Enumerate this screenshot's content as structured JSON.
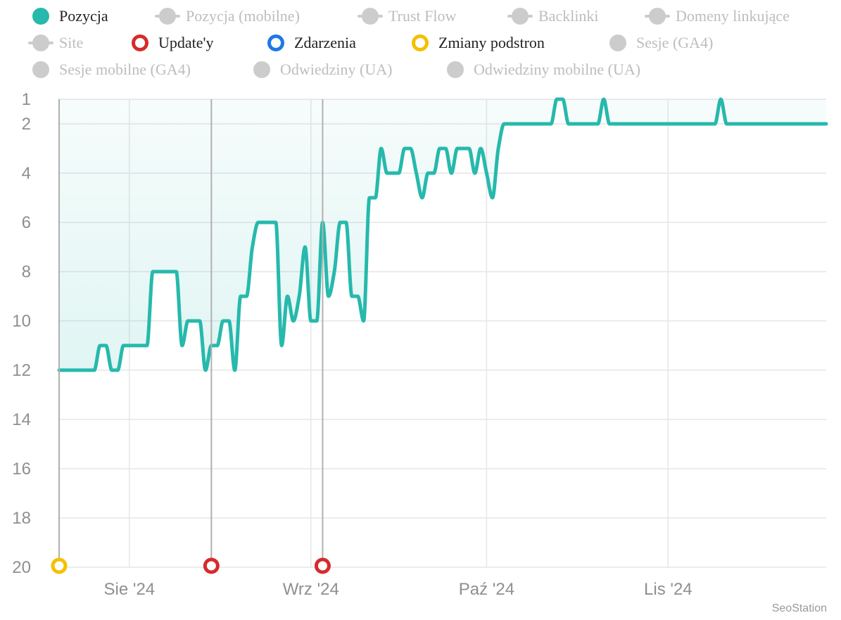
{
  "legend": [
    {
      "label": "Pozycja",
      "active": true,
      "marker": "filled",
      "color": "#26b9ac"
    },
    {
      "label": "Pozycja (mobilne)",
      "active": false,
      "marker": "line-dot",
      "color": "#cccccc"
    },
    {
      "label": "Trust Flow",
      "active": false,
      "marker": "line-dot",
      "color": "#cccccc"
    },
    {
      "label": "Backlinki",
      "active": false,
      "marker": "line-dot",
      "color": "#cccccc"
    },
    {
      "label": "Domeny linkujące",
      "active": false,
      "marker": "line-dot",
      "color": "#cccccc"
    },
    {
      "label": "Site",
      "active": false,
      "marker": "line-dot",
      "color": "#cccccc"
    },
    {
      "label": "Update'y",
      "active": true,
      "marker": "ring",
      "color": "#d62b2b"
    },
    {
      "label": "Zdarzenia",
      "active": true,
      "marker": "ring",
      "color": "#1f78e6"
    },
    {
      "label": "Zmiany podstron",
      "active": true,
      "marker": "ring",
      "color": "#f5c000"
    },
    {
      "label": "Sesje (GA4)",
      "active": false,
      "marker": "filled",
      "color": "#cccccc"
    },
    {
      "label": "Sesje mobilne (GA4)",
      "active": false,
      "marker": "filled",
      "color": "#cccccc"
    },
    {
      "label": "Odwiedziny (UA)",
      "active": false,
      "marker": "filled",
      "color": "#cccccc"
    },
    {
      "label": "Odwiedziny mobilne (UA)",
      "active": false,
      "marker": "filled",
      "color": "#cccccc"
    }
  ],
  "credit": "SeoStation",
  "chart_data": {
    "type": "line",
    "title": "",
    "xlabel": "",
    "ylabel": "",
    "ylim": [
      20,
      1
    ],
    "y_axis_reversed": true,
    "y_ticks": [
      1,
      2,
      4,
      6,
      8,
      10,
      12,
      14,
      16,
      18,
      20
    ],
    "x_range": [
      "2024-07-20",
      "2024-11-28"
    ],
    "x_ticks": [
      {
        "date": "2024-08-01",
        "label": "Sie '24"
      },
      {
        "date": "2024-09-01",
        "label": "Wrz '24"
      },
      {
        "date": "2024-10-01",
        "label": "Paź '24"
      },
      {
        "date": "2024-11-01",
        "label": "Lis '24"
      }
    ],
    "grid": true,
    "area_fill": true,
    "series": [
      {
        "name": "Pozycja",
        "color": "#26b9ac",
        "points": [
          [
            "2024-07-20",
            12
          ],
          [
            "2024-07-26",
            12
          ],
          [
            "2024-07-27",
            11
          ],
          [
            "2024-07-28",
            11
          ],
          [
            "2024-07-29",
            12
          ],
          [
            "2024-07-30",
            12
          ],
          [
            "2024-07-31",
            11
          ],
          [
            "2024-08-04",
            11
          ],
          [
            "2024-08-05",
            8
          ],
          [
            "2024-08-09",
            8
          ],
          [
            "2024-08-10",
            11
          ],
          [
            "2024-08-11",
            10
          ],
          [
            "2024-08-13",
            10
          ],
          [
            "2024-08-14",
            12
          ],
          [
            "2024-08-15",
            11
          ],
          [
            "2024-08-16",
            11
          ],
          [
            "2024-08-17",
            10
          ],
          [
            "2024-08-18",
            10
          ],
          [
            "2024-08-19",
            12
          ],
          [
            "2024-08-20",
            9
          ],
          [
            "2024-08-21",
            9
          ],
          [
            "2024-08-22",
            7
          ],
          [
            "2024-08-23",
            6
          ],
          [
            "2024-08-26",
            6
          ],
          [
            "2024-08-27",
            11
          ],
          [
            "2024-08-28",
            9
          ],
          [
            "2024-08-29",
            10
          ],
          [
            "2024-08-30",
            9
          ],
          [
            "2024-08-31",
            7
          ],
          [
            "2024-09-01",
            10
          ],
          [
            "2024-09-02",
            10
          ],
          [
            "2024-09-03",
            6
          ],
          [
            "2024-09-04",
            9
          ],
          [
            "2024-09-05",
            8
          ],
          [
            "2024-09-06",
            6
          ],
          [
            "2024-09-07",
            6
          ],
          [
            "2024-09-08",
            9
          ],
          [
            "2024-09-09",
            9
          ],
          [
            "2024-09-10",
            10
          ],
          [
            "2024-09-11",
            5
          ],
          [
            "2024-09-12",
            5
          ],
          [
            "2024-09-13",
            3
          ],
          [
            "2024-09-14",
            4
          ],
          [
            "2024-09-16",
            4
          ],
          [
            "2024-09-17",
            3
          ],
          [
            "2024-09-18",
            3
          ],
          [
            "2024-09-19",
            4
          ],
          [
            "2024-09-20",
            5
          ],
          [
            "2024-09-21",
            4
          ],
          [
            "2024-09-22",
            4
          ],
          [
            "2024-09-23",
            3
          ],
          [
            "2024-09-24",
            3
          ],
          [
            "2024-09-25",
            4
          ],
          [
            "2024-09-26",
            3
          ],
          [
            "2024-09-28",
            3
          ],
          [
            "2024-09-29",
            4
          ],
          [
            "2024-09-30",
            3
          ],
          [
            "2024-10-01",
            4
          ],
          [
            "2024-10-02",
            5
          ],
          [
            "2024-10-03",
            3
          ],
          [
            "2024-10-04",
            2
          ],
          [
            "2024-10-12",
            2
          ],
          [
            "2024-10-13",
            1
          ],
          [
            "2024-10-14",
            1
          ],
          [
            "2024-10-15",
            2
          ],
          [
            "2024-10-20",
            2
          ],
          [
            "2024-10-21",
            1
          ],
          [
            "2024-10-22",
            2
          ],
          [
            "2024-11-09",
            2
          ],
          [
            "2024-11-10",
            1
          ],
          [
            "2024-11-11",
            2
          ],
          [
            "2024-11-28",
            2
          ]
        ]
      }
    ],
    "vertical_markers": [
      "2024-07-20",
      "2024-08-15",
      "2024-09-03"
    ],
    "events": [
      {
        "date": "2024-07-20",
        "type": "Zmiany podstron",
        "color": "#f5c000"
      },
      {
        "date": "2024-08-15",
        "type": "Update'y",
        "color": "#d62b2b"
      },
      {
        "date": "2024-09-03",
        "type": "Update'y",
        "color": "#d62b2b"
      }
    ]
  }
}
